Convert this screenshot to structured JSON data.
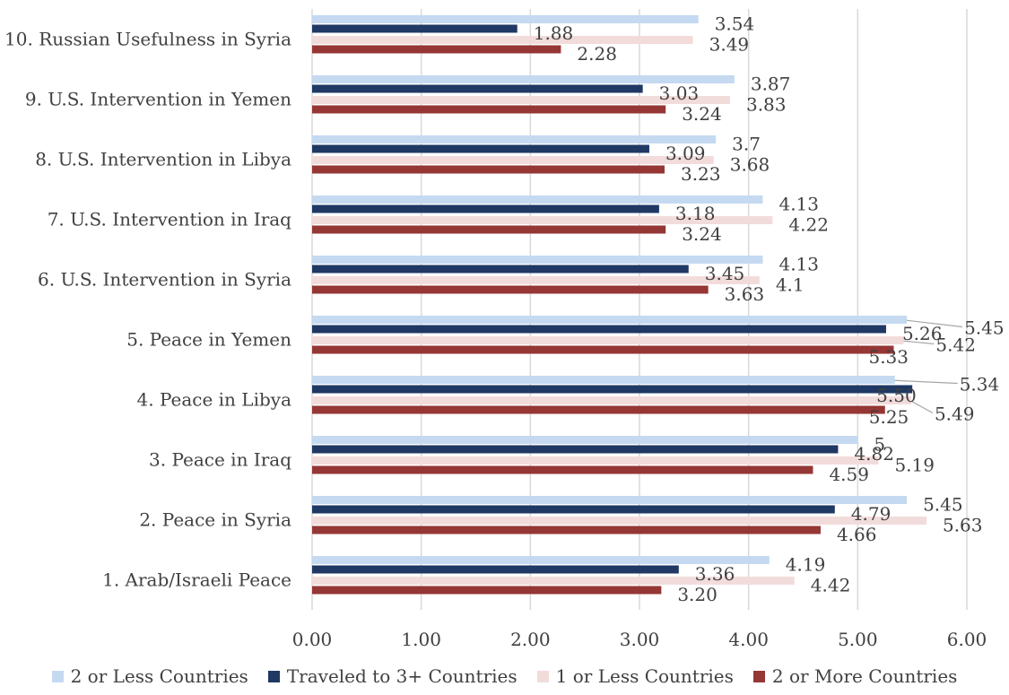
{
  "chart_data": {
    "type": "bar",
    "orientation": "horizontal",
    "categories": [
      "1. Arab/Israeli Peace",
      "2. Peace in Syria",
      "3. Peace in Iraq",
      "4. Peace in Libya",
      "5. Peace in Yemen",
      "6. U.S. Intervention in Syria",
      "7. U.S. Intervention in Iraq",
      "8. U.S. Intervention in Libya",
      "9. U.S. Intervention in Yemen",
      "10. Russian Usefulness in Syria"
    ],
    "series": [
      {
        "name": "2 or Less Countries",
        "color": "#c5d9f1",
        "values": [
          4.19,
          5.45,
          5,
          5.34,
          5.45,
          4.13,
          4.13,
          3.7,
          3.87,
          3.54
        ],
        "labels": [
          "4.19",
          "5.45",
          "5",
          "5.34",
          "5.45",
          "4.13",
          "4.13",
          "3.7",
          "3.87",
          "3.54"
        ]
      },
      {
        "name": "Traveled to 3+ Countries",
        "color": "#1f3864",
        "values": [
          3.36,
          4.79,
          4.82,
          5.5,
          5.26,
          3.45,
          3.18,
          3.09,
          3.03,
          1.88
        ],
        "labels": [
          "3.36",
          "4.79",
          "4.82",
          "5.50",
          "5.26",
          "3.45",
          "3.18",
          "3.09",
          "3.03",
          "1.88"
        ]
      },
      {
        "name": "1 or Less Countries",
        "color": "#f2dcdb",
        "values": [
          4.42,
          5.63,
          5.19,
          5.49,
          5.42,
          4.1,
          4.22,
          3.68,
          3.83,
          3.49
        ],
        "labels": [
          "4.42",
          "5.63",
          "5.19",
          "5.49",
          "5.42",
          "4.1",
          "4.22",
          "3.68",
          "3.83",
          "3.49"
        ]
      },
      {
        "name": "2 or More Countries",
        "color": "#953735",
        "values": [
          3.2,
          4.66,
          4.59,
          5.25,
          5.33,
          3.63,
          3.24,
          3.23,
          3.24,
          2.28
        ],
        "labels": [
          "3.20",
          "4.66",
          "4.59",
          "5.25",
          "5.33",
          "3.63",
          "3.24",
          "3.23",
          "3.24",
          "2.28"
        ]
      }
    ],
    "xlim": [
      0,
      6
    ],
    "xticks": [
      "0.00",
      "1.00",
      "2.00",
      "3.00",
      "4.00",
      "5.00",
      "6.00"
    ],
    "grid": true,
    "legend_position": "bottom",
    "title": "",
    "xlabel": "",
    "ylabel": ""
  }
}
